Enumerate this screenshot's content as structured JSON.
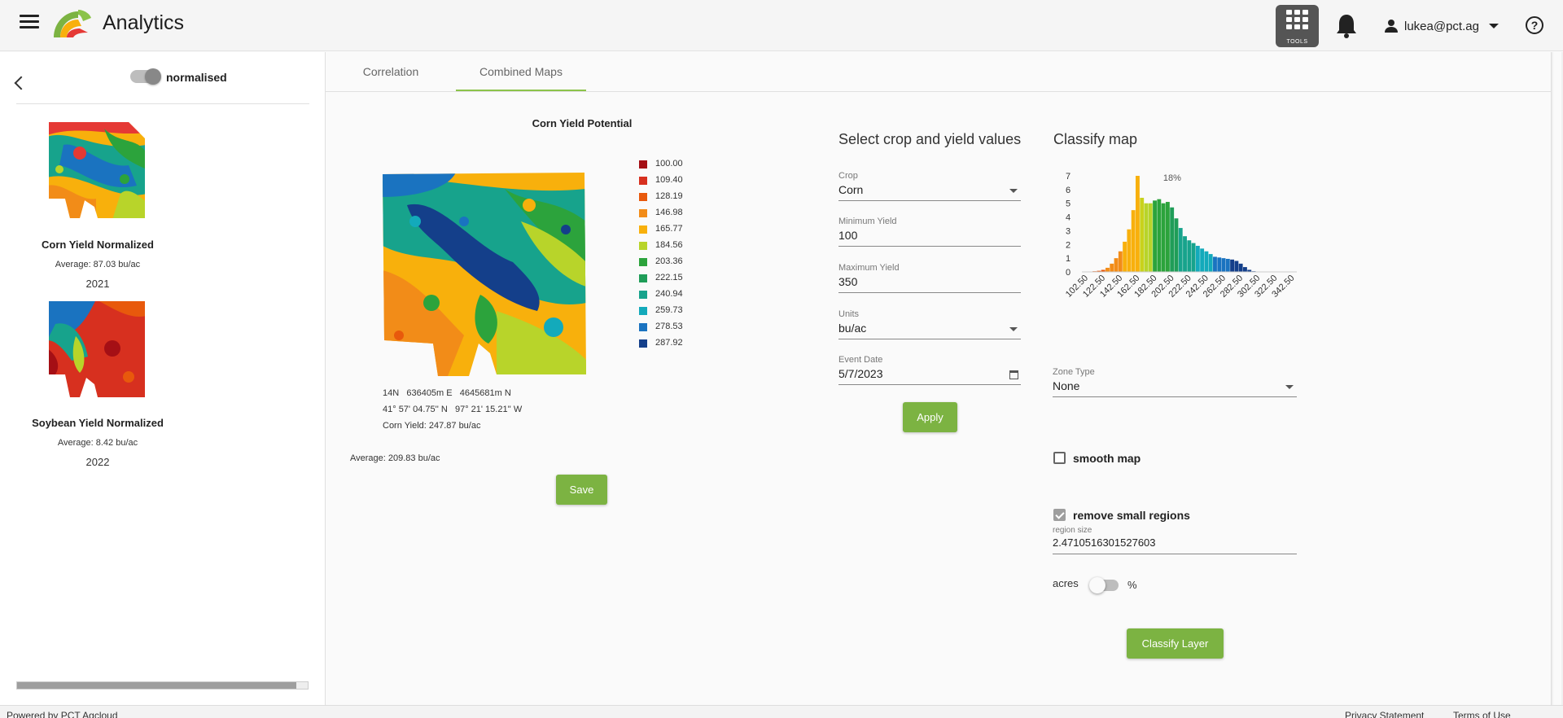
{
  "header": {
    "app_title": "Analytics",
    "tools_label": "TOOLS",
    "user_email": "lukea@pct.ag",
    "help": "?"
  },
  "sidebar": {
    "toggle_label": "normalised",
    "maps": [
      {
        "name": "Corn Yield Normalized",
        "average": "Average: 87.03 bu/ac",
        "year": "2021"
      },
      {
        "name": "Soybean Yield Normalized",
        "average": "Average: 8.42 bu/ac",
        "year": "2022"
      }
    ]
  },
  "tabs": [
    {
      "label": "Correlation",
      "active": false
    },
    {
      "label": "Combined Maps",
      "active": true
    }
  ],
  "map_panel": {
    "title": "Corn Yield Potential",
    "legend": [
      {
        "value": "100.00",
        "color": "#a50f15"
      },
      {
        "value": "109.40",
        "color": "#d7301f"
      },
      {
        "value": "128.19",
        "color": "#e8590c"
      },
      {
        "value": "146.98",
        "color": "#f28c18"
      },
      {
        "value": "165.77",
        "color": "#f8b00c"
      },
      {
        "value": "184.56",
        "color": "#b8d42a"
      },
      {
        "value": "203.36",
        "color": "#2ca33c"
      },
      {
        "value": "222.15",
        "color": "#1f9d58"
      },
      {
        "value": "240.94",
        "color": "#17a38c"
      },
      {
        "value": "259.73",
        "color": "#13aabb"
      },
      {
        "value": "278.53",
        "color": "#1a73c0"
      },
      {
        "value": "287.92",
        "color": "#143f8a"
      }
    ],
    "coord_utm": "14N   636405m E   4645681m N",
    "coord_latlon": "41° 57' 04.75'' N   97° 21' 15.21'' W",
    "coord_value": "Corn Yield: 247.87 bu/ac",
    "average": "Average: 209.83 bu/ac",
    "save_label": "Save"
  },
  "crop_form": {
    "title": "Select crop and yield values",
    "crop_label": "Crop",
    "crop_value": "Corn",
    "min_label": "Minimum Yield",
    "min_value": "100",
    "max_label": "Maximum Yield",
    "max_value": "350",
    "units_label": "Units",
    "units_value": "bu/ac",
    "date_label": "Event Date",
    "date_value": "5/7/2023",
    "apply_label": "Apply"
  },
  "classify": {
    "title": "Classify map",
    "zone_type_label": "Zone Type",
    "zone_type_value": "None",
    "smooth_label": "smooth map",
    "smooth_checked": false,
    "remove_label": "remove small regions",
    "remove_checked": true,
    "region_size_label": "region size",
    "region_size_value": "2.4710516301527603",
    "acres_label": "acres",
    "pct_label": "%",
    "classify_label": "Classify Layer"
  },
  "chart_data": {
    "type": "bar",
    "title": "",
    "annotation": "18%",
    "ylim": [
      0,
      7
    ],
    "yticks": [
      "0",
      "1",
      "2",
      "3",
      "4",
      "5",
      "6",
      "7"
    ],
    "xticks": [
      "102.50",
      "122.50",
      "142.50",
      "162.50",
      "182.50",
      "202.50",
      "222.50",
      "242.50",
      "262.50",
      "282.50",
      "302.50",
      "322.50",
      "342.50"
    ],
    "x_start": 102.5,
    "x_end": 352.5,
    "bins": [
      {
        "x": 107.5,
        "value": 0.02,
        "color": "#d7301f"
      },
      {
        "x": 112.5,
        "value": 0.03,
        "color": "#d7301f"
      },
      {
        "x": 117.5,
        "value": 0.05,
        "color": "#e8590c"
      },
      {
        "x": 122.5,
        "value": 0.08,
        "color": "#e8590c"
      },
      {
        "x": 127.5,
        "value": 0.15,
        "color": "#e8590c"
      },
      {
        "x": 132.5,
        "value": 0.3,
        "color": "#f28c18"
      },
      {
        "x": 137.5,
        "value": 0.6,
        "color": "#f28c18"
      },
      {
        "x": 142.5,
        "value": 1.0,
        "color": "#f28c18"
      },
      {
        "x": 147.5,
        "value": 1.5,
        "color": "#f28c18"
      },
      {
        "x": 152.5,
        "value": 2.2,
        "color": "#f8b00c"
      },
      {
        "x": 157.5,
        "value": 3.1,
        "color": "#f8b00c"
      },
      {
        "x": 162.5,
        "value": 4.5,
        "color": "#f8b00c"
      },
      {
        "x": 167.5,
        "value": 7.0,
        "color": "#f8b00c"
      },
      {
        "x": 172.5,
        "value": 5.4,
        "color": "#c9d21c"
      },
      {
        "x": 177.5,
        "value": 5.0,
        "color": "#b8d42a"
      },
      {
        "x": 182.5,
        "value": 5.0,
        "color": "#b8d42a"
      },
      {
        "x": 187.5,
        "value": 5.2,
        "color": "#2ca33c"
      },
      {
        "x": 192.5,
        "value": 5.3,
        "color": "#2ca33c"
      },
      {
        "x": 197.5,
        "value": 5.0,
        "color": "#2ca33c"
      },
      {
        "x": 202.5,
        "value": 5.1,
        "color": "#2ca33c"
      },
      {
        "x": 207.5,
        "value": 4.7,
        "color": "#1f9d58"
      },
      {
        "x": 212.5,
        "value": 3.9,
        "color": "#1f9d58"
      },
      {
        "x": 217.5,
        "value": 3.2,
        "color": "#17a38c"
      },
      {
        "x": 222.5,
        "value": 2.6,
        "color": "#17a38c"
      },
      {
        "x": 227.5,
        "value": 2.3,
        "color": "#17a38c"
      },
      {
        "x": 232.5,
        "value": 2.1,
        "color": "#17a38c"
      },
      {
        "x": 237.5,
        "value": 1.9,
        "color": "#13aabb"
      },
      {
        "x": 242.5,
        "value": 1.7,
        "color": "#13aabb"
      },
      {
        "x": 247.5,
        "value": 1.5,
        "color": "#13aabb"
      },
      {
        "x": 252.5,
        "value": 1.3,
        "color": "#13aabb"
      },
      {
        "x": 257.5,
        "value": 1.1,
        "color": "#1a73c0"
      },
      {
        "x": 262.5,
        "value": 1.05,
        "color": "#1a73c0"
      },
      {
        "x": 267.5,
        "value": 1.0,
        "color": "#1a73c0"
      },
      {
        "x": 272.5,
        "value": 0.95,
        "color": "#1a73c0"
      },
      {
        "x": 277.5,
        "value": 0.9,
        "color": "#143f8a"
      },
      {
        "x": 282.5,
        "value": 0.8,
        "color": "#143f8a"
      },
      {
        "x": 287.5,
        "value": 0.6,
        "color": "#143f8a"
      },
      {
        "x": 292.5,
        "value": 0.35,
        "color": "#143f8a"
      },
      {
        "x": 297.5,
        "value": 0.15,
        "color": "#143f8a"
      },
      {
        "x": 302.5,
        "value": 0.05,
        "color": "#143f8a"
      },
      {
        "x": 307.5,
        "value": 0.02,
        "color": "#143f8a"
      }
    ]
  },
  "footer": {
    "left": "Powered by PCT Agcloud",
    "privacy": "Privacy Statement",
    "terms": "Terms of Use"
  }
}
